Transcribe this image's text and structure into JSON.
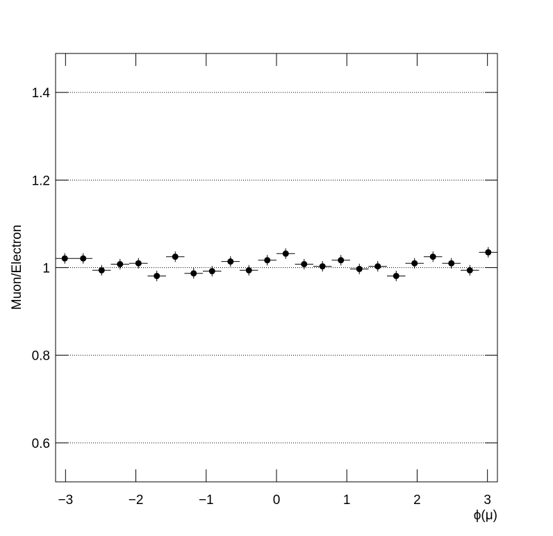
{
  "chart_data": {
    "type": "errorbar",
    "x_label": "ϕ(μ)",
    "y_label": "Muon/Electron",
    "x": [
      -3.011,
      -2.749,
      -2.487,
      -2.225,
      -1.963,
      -1.702,
      -1.44,
      -1.178,
      -0.916,
      -0.654,
      -0.393,
      -0.131,
      0.131,
      0.393,
      0.654,
      0.916,
      1.178,
      1.44,
      1.702,
      1.963,
      2.225,
      2.487,
      2.749,
      3.011
    ],
    "xerr": 0.131,
    "values": [
      1.021,
      1.021,
      0.994,
      1.008,
      1.01,
      0.981,
      1.025,
      0.987,
      0.992,
      1.014,
      0.994,
      1.017,
      1.032,
      1.008,
      1.003,
      1.017,
      0.997,
      1.003,
      0.981,
      1.01,
      1.025,
      1.01,
      0.994,
      1.035
    ],
    "errors": [
      0.012,
      0.012,
      0.012,
      0.012,
      0.012,
      0.012,
      0.012,
      0.012,
      0.012,
      0.012,
      0.012,
      0.012,
      0.012,
      0.012,
      0.012,
      0.012,
      0.012,
      0.012,
      0.012,
      0.012,
      0.012,
      0.012,
      0.012,
      0.012
    ],
    "color": "#000000",
    "xlim": [
      -3.1416,
      3.1416
    ],
    "xticks": [
      {
        "value": -3,
        "label": "−3"
      },
      {
        "value": -2,
        "label": "−2"
      },
      {
        "value": -1,
        "label": "−1"
      },
      0,
      1,
      2,
      3
    ],
    "ylim": [
      0.511,
      1.489
    ],
    "yticks": [
      0.6,
      0.8,
      1,
      1.2,
      1.4
    ],
    "grid": true
  }
}
